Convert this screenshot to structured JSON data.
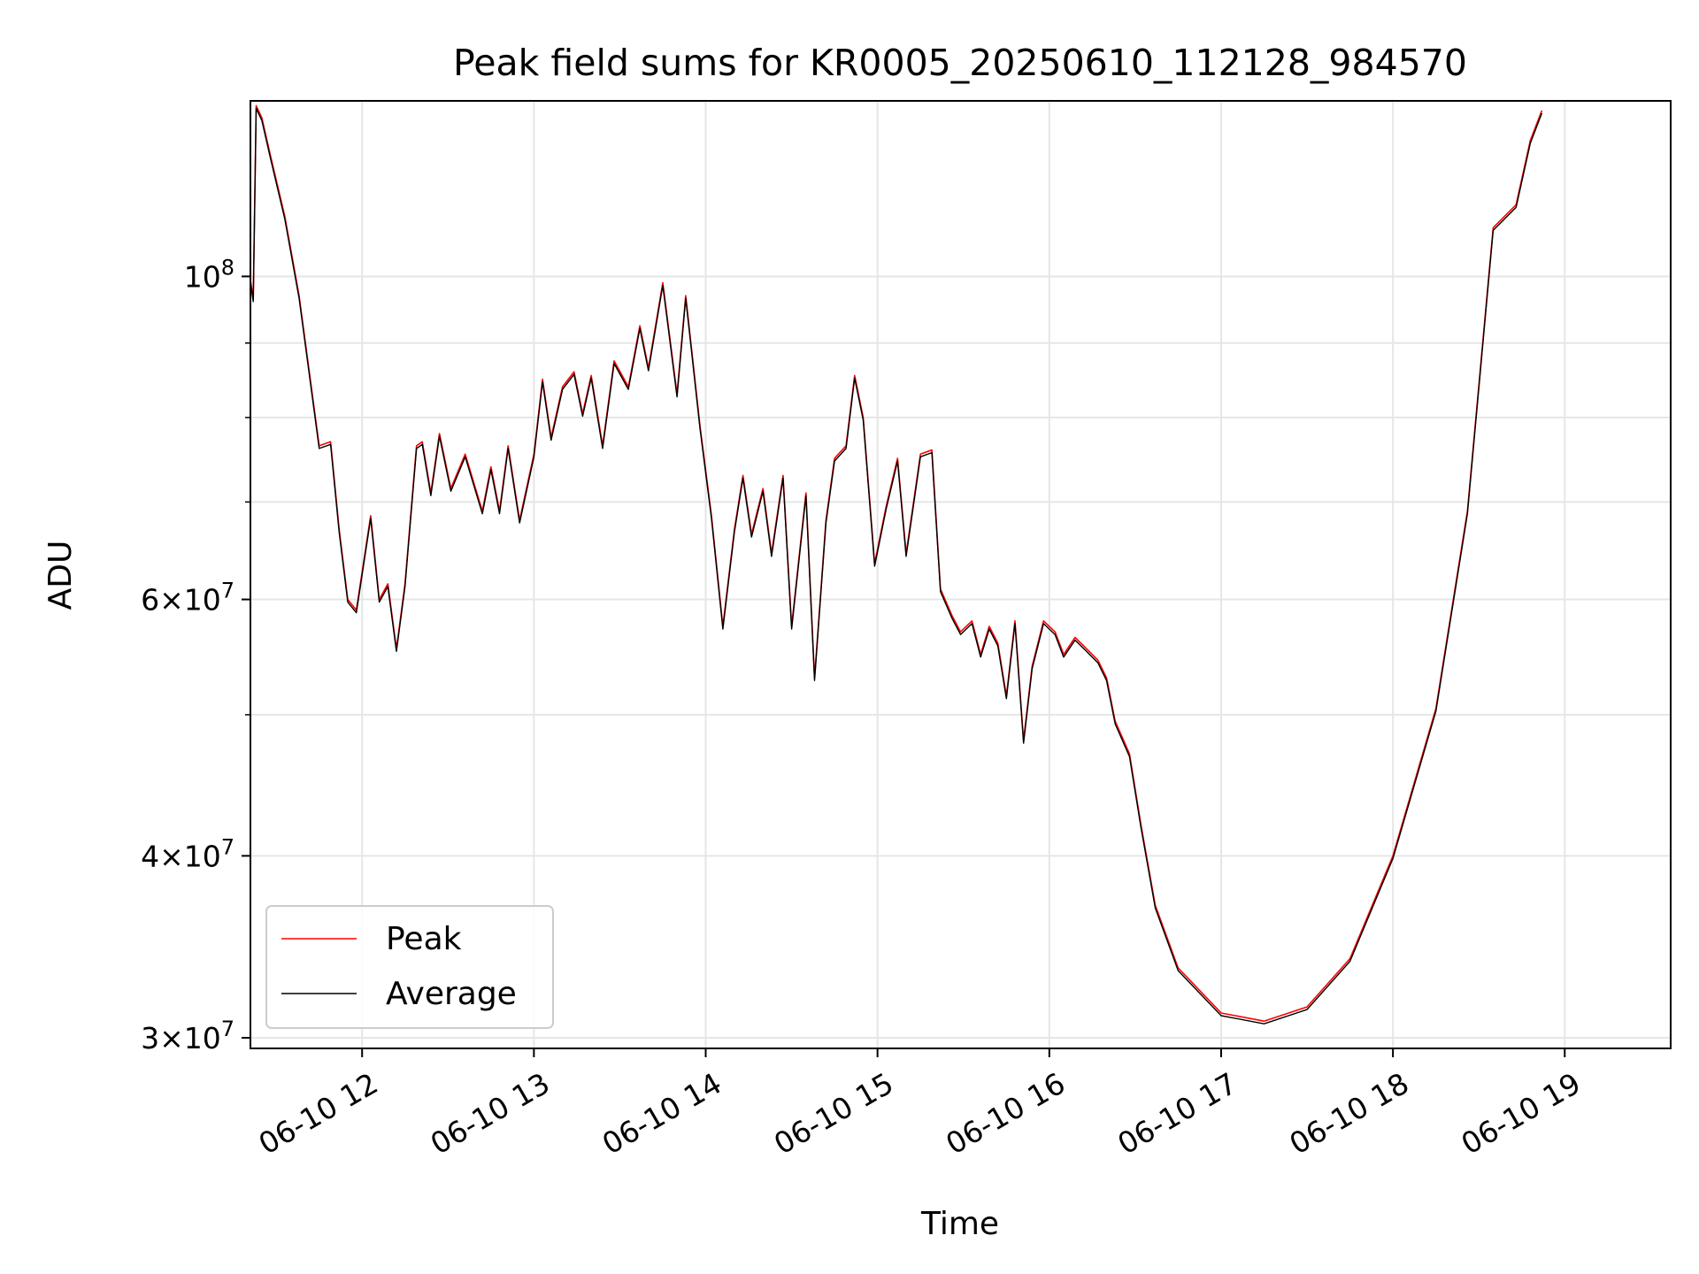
{
  "chart_data": {
    "type": "line",
    "title": "Peak field sums for KR0005_20250610_112128_984570",
    "xlabel": "Time",
    "ylabel": "ADU",
    "yscale": "log",
    "xlim": [
      "06-10 11:21",
      "06-10 19:37"
    ],
    "ylim": [
      29500000,
      132000000
    ],
    "grid": true,
    "legend_position": "lower-left",
    "x_tick_labels": [
      "06-10 12",
      "06-10 13",
      "06-10 14",
      "06-10 15",
      "06-10 16",
      "06-10 17",
      "06-10 18",
      "06-10 19"
    ],
    "x_ticks": [
      "06-10 12:00",
      "06-10 13:00",
      "06-10 14:00",
      "06-10 15:00",
      "06-10 16:00",
      "06-10 17:00",
      "06-10 18:00",
      "06-10 19:00"
    ],
    "y_major_ticks": [
      {
        "value": 30000000,
        "mantissa": "3",
        "exp": "7"
      },
      {
        "value": 40000000,
        "mantissa": "4",
        "exp": "7"
      },
      {
        "value": 60000000,
        "mantissa": "6",
        "exp": "7"
      },
      {
        "value": 100000000,
        "mantissa": "",
        "exp": "8"
      }
    ],
    "y_minor_gridlines": [
      50000000,
      70000000,
      80000000,
      90000000
    ],
    "series": [
      {
        "name": "Peak",
        "color": "#ff0000",
        "x": [
          "06-10 11:21",
          "06-10 11:22",
          "06-10 11:23",
          "06-10 11:25",
          "06-10 11:28",
          "06-10 11:33",
          "06-10 11:38",
          "06-10 11:45",
          "06-10 11:49",
          "06-10 11:52",
          "06-10 11:55",
          "06-10 11:58",
          "06-10 12:03",
          "06-10 12:06",
          "06-10 12:09",
          "06-10 12:12",
          "06-10 12:15",
          "06-10 12:19",
          "06-10 12:21",
          "06-10 12:24",
          "06-10 12:27",
          "06-10 12:31",
          "06-10 12:36",
          "06-10 12:42",
          "06-10 12:45",
          "06-10 12:48",
          "06-10 12:51",
          "06-10 12:55",
          "06-10 13:00",
          "06-10 13:03",
          "06-10 13:06",
          "06-10 13:10",
          "06-10 13:14",
          "06-10 13:17",
          "06-10 13:20",
          "06-10 13:24",
          "06-10 13:28",
          "06-10 13:33",
          "06-10 13:37",
          "06-10 13:40",
          "06-10 13:45",
          "06-10 13:50",
          "06-10 13:53",
          "06-10 13:58",
          "06-10 14:02",
          "06-10 14:06",
          "06-10 14:10",
          "06-10 14:13",
          "06-10 14:16",
          "06-10 14:20",
          "06-10 14:23",
          "06-10 14:27",
          "06-10 14:30",
          "06-10 14:35",
          "06-10 14:38",
          "06-10 14:42",
          "06-10 14:45",
          "06-10 14:49",
          "06-10 14:52",
          "06-10 14:55",
          "06-10 14:59",
          "06-10 15:03",
          "06-10 15:07",
          "06-10 15:10",
          "06-10 15:15",
          "06-10 15:19",
          "06-10 15:22",
          "06-10 15:26",
          "06-10 15:29",
          "06-10 15:33",
          "06-10 15:36",
          "06-10 15:39",
          "06-10 15:42",
          "06-10 15:45",
          "06-10 15:48",
          "06-10 15:51",
          "06-10 15:54",
          "06-10 15:58",
          "06-10 16:02",
          "06-10 16:05",
          "06-10 16:09",
          "06-10 16:13",
          "06-10 16:17",
          "06-10 16:20",
          "06-10 16:23",
          "06-10 16:28",
          "06-10 16:32",
          "06-10 16:37",
          "06-10 16:45",
          "06-10 17:00",
          "06-10 17:15",
          "06-10 17:30",
          "06-10 17:45",
          "06-10 18:00",
          "06-10 18:15",
          "06-10 18:26",
          "06-10 18:35",
          "06-10 18:43",
          "06-10 18:48",
          "06-10 18:52",
          "06-10 18:56",
          "06-10 19:00",
          "06-10 19:05",
          "06-10 19:12",
          "06-10 19:18",
          "06-10 19:24",
          "06-10 19:27",
          "06-10 19:30",
          "06-10 19:36"
        ],
        "values": [
          99500000,
          96500000,
          131000000,
          128500000,
          121000000,
          110000000,
          97000000,
          76500000,
          77000000,
          67000000,
          60000000,
          59000000,
          68500000,
          60000000,
          61500000,
          55500000,
          61500000,
          76500000,
          77000000,
          71000000,
          78000000,
          71500000,
          75500000,
          69000000,
          74000000,
          69000000,
          76500000,
          68000000,
          75500000,
          85000000,
          77500000,
          84000000,
          86000000,
          80500000,
          85500000,
          76500000,
          87500000,
          84000000,
          92500000,
          86500000,
          99000000,
          83000000,
          97000000,
          79000000,
          68500000,
          57500000,
          67000000,
          73000000,
          66500000,
          71500000,
          64500000,
          73000000,
          57500000,
          71000000,
          53000000,
          68000000,
          75000000,
          76500000,
          85500000,
          80000000,
          63500000,
          69500000,
          75000000,
          64500000,
          75500000,
          76000000,
          61000000,
          58500000,
          57000000,
          58000000,
          55000000,
          57500000,
          56000000,
          51500000,
          58000000,
          48000000,
          54000000,
          58000000,
          57000000,
          55000000,
          56500000,
          55500000,
          54500000,
          53000000,
          49500000,
          47000000,
          42000000,
          37000000,
          33500000,
          31200000,
          30800000,
          31500000,
          34000000,
          40000000,
          50500000,
          69000000,
          108000000,
          112000000,
          124000000,
          130000000,
          null,
          null,
          null,
          null,
          null,
          null,
          null,
          null,
          null
        ],
        "trace_note": ""
      },
      {
        "name": "Average",
        "color": "#000000",
        "values": []
      }
    ]
  },
  "legend": [
    {
      "label": "Peak",
      "color": "#ff0000"
    },
    {
      "label": "Average",
      "color": "#000000"
    }
  ]
}
